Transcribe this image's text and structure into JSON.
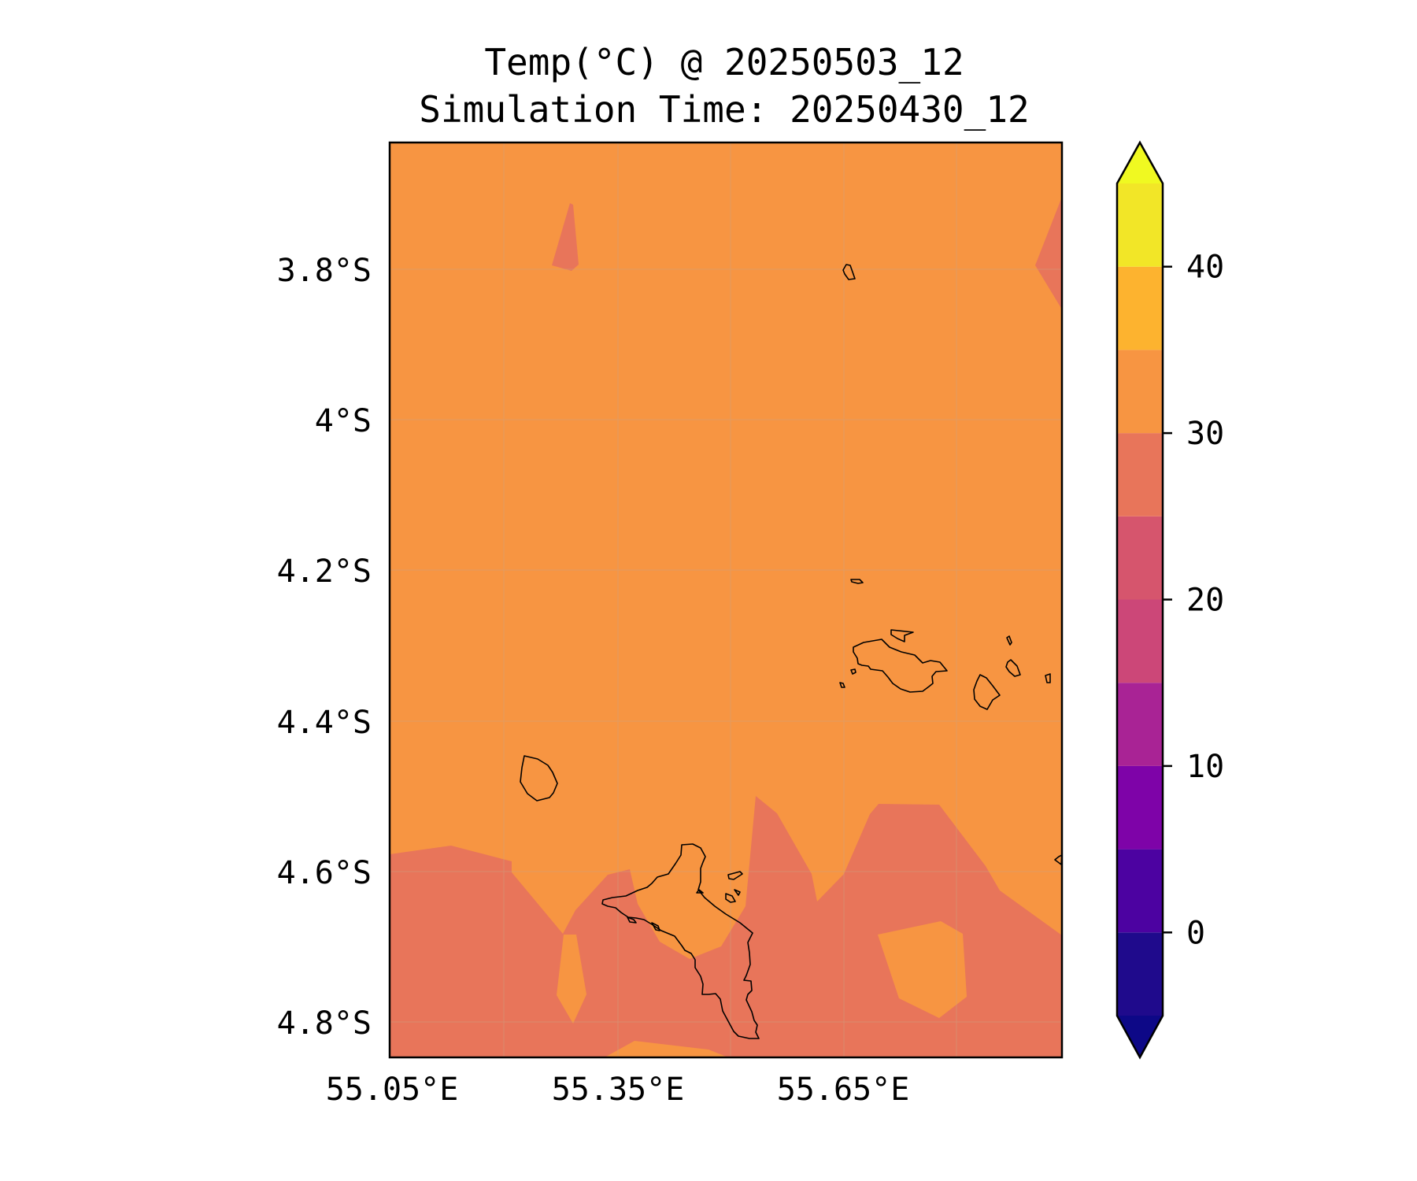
{
  "title": {
    "line1": "Temp(°C) @ 20250503_12",
    "line2": "Simulation Time: 20250430_12"
  },
  "map": {
    "lat_ticks": [
      "3.8°S",
      "4°S",
      "4.2°S",
      "4.4°S",
      "4.6°S",
      "4.8°S"
    ],
    "lon_ticks": [
      "55.05°E",
      "55.35°E",
      "55.65°E"
    ],
    "lat_values": [
      -3.8,
      -4.0,
      -4.2,
      -4.4,
      -4.6,
      -4.8
    ],
    "lon_values": [
      55.05,
      55.35,
      55.65
    ],
    "gridlines": true,
    "coastlines": true
  },
  "colorbar": {
    "tick_labels": [
      "0",
      "10",
      "20",
      "30",
      "40"
    ],
    "tick_values": [
      0,
      10,
      20,
      30,
      40
    ],
    "range": [
      -5,
      45
    ],
    "extend": "both",
    "levels": [
      {
        "from": -5,
        "to": 0,
        "color": "#1f0a8c"
      },
      {
        "from": 0,
        "to": 5,
        "color": "#4c02a1"
      },
      {
        "from": 5,
        "to": 10,
        "color": "#7e03a8"
      },
      {
        "from": 10,
        "to": 15,
        "color": "#a92395"
      },
      {
        "from": 15,
        "to": 20,
        "color": "#cc4778"
      },
      {
        "from": 20,
        "to": 25,
        "color": "#d6556d"
      },
      {
        "from": 25,
        "to": 30,
        "color": "#e8755a"
      },
      {
        "from": 30,
        "to": 35,
        "color": "#f79542"
      },
      {
        "from": 35,
        "to": 40,
        "color": "#fdb32f"
      },
      {
        "from": 40,
        "to": 45,
        "color": "#f2e627"
      }
    ],
    "under_color": "#0d0887",
    "over_color": "#f0f921"
  },
  "colors": {
    "warm_orange": "#f79542",
    "coral": "#e8755a"
  }
}
